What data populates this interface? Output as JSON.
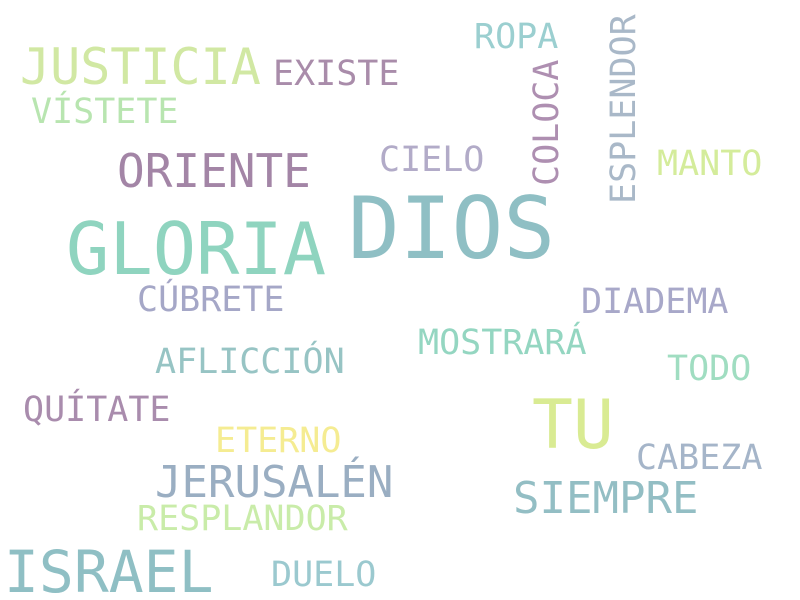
{
  "word_cloud": {
    "words": [
      {
        "text": "DIOS",
        "color": "#8fbfc4"
      },
      {
        "text": "GLORIA",
        "color": "#8fd4bf"
      },
      {
        "text": "TU",
        "color": "#d9eb93"
      },
      {
        "text": "ISRAEL",
        "color": "#8fbfc4"
      },
      {
        "text": "JUSTICIA",
        "color": "#d1e8a3"
      },
      {
        "text": "ORIENTE",
        "color": "#a385a6"
      },
      {
        "text": "JERUSALÉN",
        "color": "#9aaec2"
      },
      {
        "text": "SIEMPRE",
        "color": "#93bec4"
      },
      {
        "text": "MOSTRARÁ",
        "color": "#94d6c1"
      },
      {
        "text": "AFLICCIÓN",
        "color": "#97c4c4"
      },
      {
        "text": "CÚBRETE",
        "color": "#a5a7c7"
      },
      {
        "text": "DIADEMA",
        "color": "#a8a8c9"
      },
      {
        "text": "EXISTE",
        "color": "#a98caa"
      },
      {
        "text": "VÍSTETE",
        "color": "#b8e5b0"
      },
      {
        "text": "CIELO",
        "color": "#b2abc8"
      },
      {
        "text": "ROPA",
        "color": "#9bcfd0"
      },
      {
        "text": "MANTO",
        "color": "#d4ec9b"
      },
      {
        "text": "TODO",
        "color": "#a0ddc1"
      },
      {
        "text": "QUÍTATE",
        "color": "#a98cad"
      },
      {
        "text": "ETERNO",
        "color": "#f5ec92"
      },
      {
        "text": "CABEZA",
        "color": "#a5b5c9"
      },
      {
        "text": "RESPLANDOR",
        "color": "#c9eca9"
      },
      {
        "text": "DUELO",
        "color": "#9bc9cf"
      },
      {
        "text": "COLOCA",
        "color": "#ae8fb1",
        "orientation": "vertical"
      },
      {
        "text": "ESPLENDOR",
        "color": "#a9b8c8",
        "orientation": "vertical"
      }
    ]
  }
}
